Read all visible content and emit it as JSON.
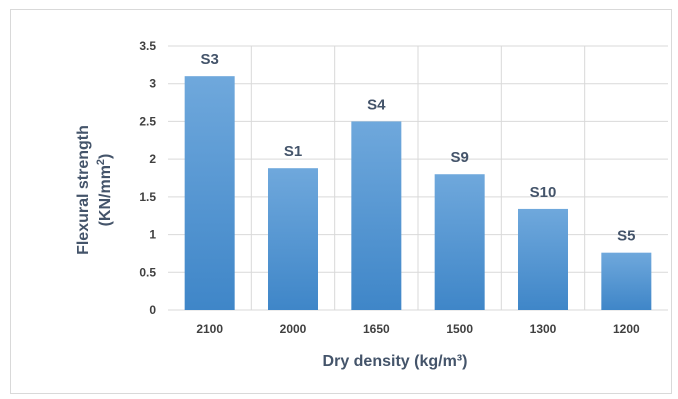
{
  "chart_data": {
    "type": "bar",
    "categories": [
      "2100",
      "2000",
      "1650",
      "1500",
      "1300",
      "1200"
    ],
    "values": [
      3.1,
      1.88,
      2.5,
      1.8,
      1.34,
      0.76
    ],
    "data_labels": [
      "S3",
      "S1",
      "S4",
      "S9",
      "S10",
      "S5"
    ],
    "xlabel": "Dry density (kg/m³)",
    "ylabel_line1": "Flexural strength",
    "ylabel_line2_prefix": "(KN/mm",
    "ylabel_line2_sup": "2",
    "ylabel_line2_suffix": ")",
    "ylim": [
      0,
      3.5
    ],
    "yticks": [
      "0",
      "0.5",
      "1",
      "1.5",
      "2",
      "2.5",
      "3",
      "3.5"
    ],
    "grid": true,
    "bar_color_top": "#6fa8dc",
    "bar_color_bottom": "#3f86c8"
  }
}
